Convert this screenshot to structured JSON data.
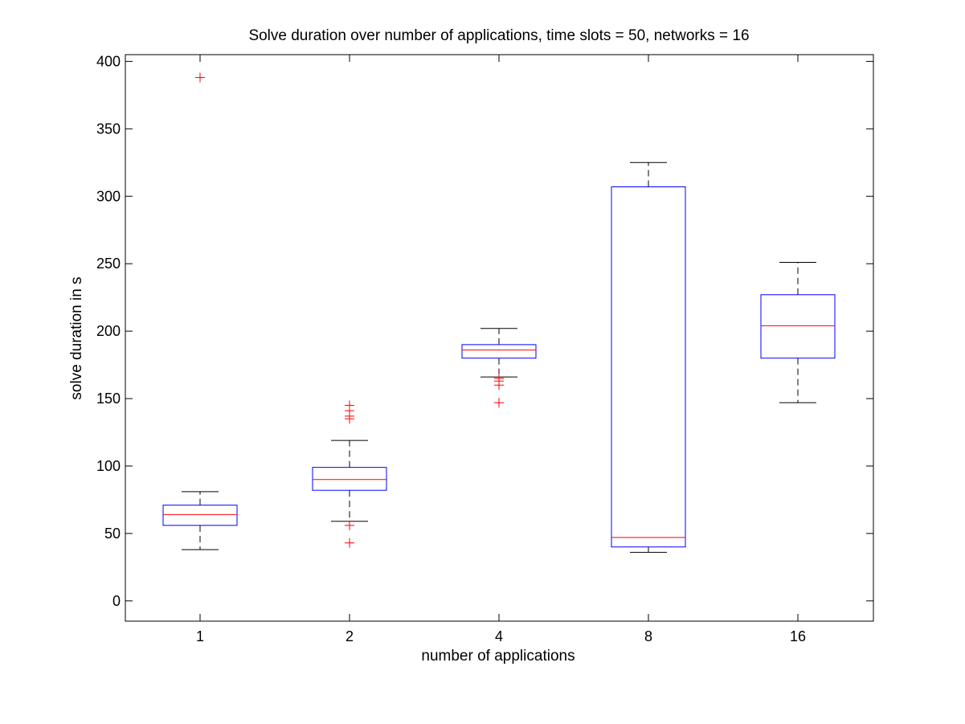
{
  "chart_data": {
    "type": "box",
    "title": "Solve duration over number of applications, time slots = 50, networks = 16",
    "xlabel": "number of applications",
    "ylabel": "solve duration in s",
    "ylim": [
      -15,
      405
    ],
    "yticks": [
      0,
      50,
      100,
      150,
      200,
      250,
      300,
      350,
      400
    ],
    "categories": [
      "1",
      "2",
      "4",
      "8",
      "16"
    ],
    "boxes": [
      {
        "category": "1",
        "whisker_low": 38,
        "q1": 56,
        "median": 64,
        "q3": 71,
        "whisker_high": 81,
        "outliers": [
          388
        ]
      },
      {
        "category": "2",
        "whisker_low": 59,
        "q1": 82,
        "median": 90,
        "q3": 99,
        "whisker_high": 119,
        "outliers": [
          43,
          56,
          135,
          137,
          141,
          145
        ]
      },
      {
        "category": "4",
        "whisker_low": 166,
        "q1": 180,
        "median": 186,
        "q3": 190,
        "whisker_high": 202,
        "outliers": [
          147,
          160,
          163,
          165
        ]
      },
      {
        "category": "8",
        "whisker_low": 36,
        "q1": 40,
        "median": 47,
        "q3": 307,
        "whisker_high": 325,
        "outliers": []
      },
      {
        "category": "16",
        "whisker_low": 147,
        "q1": 180,
        "median": 204,
        "q3": 227,
        "whisker_high": 251,
        "outliers": []
      }
    ],
    "grid": false,
    "legend": "none",
    "colors": {
      "box": "#0000ff",
      "median": "#ff0000",
      "whisker": "#000000",
      "outlier": "#ff0000"
    }
  }
}
